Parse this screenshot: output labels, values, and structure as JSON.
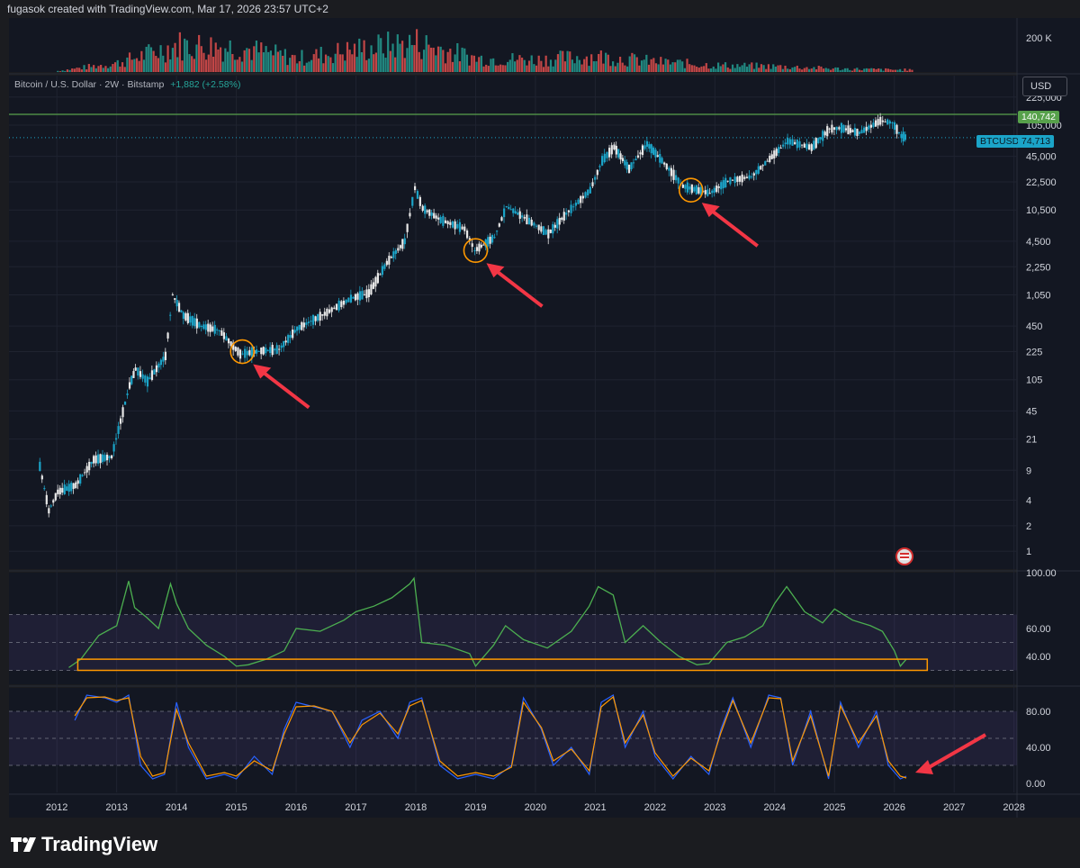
{
  "header": {
    "attribution": "fugasok created with TradingView.com, Mar 17, 2026 23:57 UTC+2"
  },
  "legend": {
    "symbol": "Bitcoin / U.S. Dollar · 2W · Bitstamp",
    "change": "+1,882 (+2.58%)"
  },
  "currency_button": "USD",
  "price_tags": {
    "ath": "140,742",
    "symbol": "BTCUSD",
    "last": "74,713"
  },
  "brand": {
    "name": "TradingView"
  },
  "colors": {
    "up": "#26a69a",
    "cyan": "#1ba4c8",
    "rsi": "#4caf50",
    "stochK": "#2962ff",
    "stochD": "#ff9800",
    "arrow": "#f23645",
    "ath_line": "#57a14b"
  },
  "chart_data": [
    {
      "type": "bar",
      "panel": "volume",
      "ylabel": "",
      "yticks": [
        "200 K"
      ],
      "x": [
        2012,
        2013,
        2014,
        2015,
        2016,
        2017,
        2018,
        2019,
        2020,
        2021,
        2022,
        2023,
        2024,
        2025,
        2026
      ],
      "values": [
        5,
        40,
        120,
        110,
        60,
        100,
        130,
        60,
        55,
        70,
        45,
        30,
        25,
        15,
        10
      ]
    },
    {
      "type": "line",
      "panel": "price",
      "title": "Bitcoin / U.S. Dollar · 2W · Bitstamp",
      "scale": "log",
      "yticks": [
        "225,000",
        "105,000",
        "45,000",
        "22,500",
        "10,500",
        "4,500",
        "2,250",
        "1,050",
        "450",
        "225",
        "105",
        "45",
        "21",
        "9",
        "4",
        "2",
        "1"
      ],
      "xticks": [
        "2012",
        "2013",
        "2014",
        "2015",
        "2016",
        "2017",
        "2018",
        "2019",
        "2020",
        "2021",
        "2022",
        "2023",
        "2024",
        "2025",
        "2026",
        "2027",
        "2028"
      ],
      "series": [
        {
          "x": [
            2011.7,
            2011.85,
            2012.0,
            2012.3,
            2012.6,
            2012.9,
            2013.2,
            2013.3,
            2013.5,
            2013.8,
            2013.92,
            2014.1,
            2014.4,
            2014.7,
            2015.05,
            2015.4,
            2015.7,
            2016.0,
            2016.5,
            2016.9,
            2017.2,
            2017.5,
            2017.8,
            2017.97,
            2018.1,
            2018.4,
            2018.8,
            2018.97,
            2019.3,
            2019.5,
            2019.8,
            2020.2,
            2020.5,
            2020.9,
            2021.1,
            2021.3,
            2021.55,
            2021.85,
            2022.1,
            2022.45,
            2022.9,
            2023.2,
            2023.6,
            2023.9,
            2024.2,
            2024.6,
            2024.9,
            2025.1,
            2025.4,
            2025.75,
            2025.95,
            2026.1,
            2026.2
          ],
          "y": [
            10,
            3,
            5,
            6,
            12,
            13,
            90,
            140,
            100,
            200,
            1050,
            600,
            450,
            400,
            210,
            230,
            240,
            420,
            650,
            950,
            1100,
            2500,
            4500,
            19000,
            11000,
            8000,
            6300,
            3500,
            5000,
            11500,
            8500,
            5500,
            9500,
            18000,
            40000,
            58000,
            32000,
            63000,
            40000,
            20000,
            16500,
            23000,
            26000,
            42000,
            68000,
            57000,
            95000,
            97000,
            85000,
            118000,
            112000,
            78000,
            74713
          ]
        }
      ],
      "horizontal_line": 140742,
      "last_price": 74713,
      "annotations": [
        {
          "type": "circle",
          "x": 2015.1,
          "y": 225
        },
        {
          "type": "circle",
          "x": 2019.0,
          "y": 3500
        },
        {
          "type": "circle",
          "x": 2022.6,
          "y": 18000
        }
      ]
    },
    {
      "type": "line",
      "panel": "rsi",
      "yticks": [
        "100.00",
        "60.00",
        "40.00"
      ],
      "ylim": [
        20,
        100
      ],
      "bands": [
        30,
        70
      ],
      "series": [
        {
          "x": [
            2012.2,
            2012.4,
            2012.7,
            2013.0,
            2013.2,
            2013.3,
            2013.5,
            2013.7,
            2013.9,
            2014.0,
            2014.2,
            2014.5,
            2014.8,
            2015.0,
            2015.2,
            2015.5,
            2015.8,
            2016.0,
            2016.4,
            2016.8,
            2017.0,
            2017.3,
            2017.6,
            2017.9,
            2017.97,
            2018.1,
            2018.5,
            2018.9,
            2019.0,
            2019.3,
            2019.5,
            2019.8,
            2020.2,
            2020.6,
            2020.9,
            2021.05,
            2021.3,
            2021.5,
            2021.8,
            2022.1,
            2022.4,
            2022.7,
            2022.9,
            2023.2,
            2023.5,
            2023.8,
            2024.0,
            2024.2,
            2024.5,
            2024.8,
            2025.0,
            2025.3,
            2025.6,
            2025.8,
            2026.0,
            2026.1,
            2026.2
          ],
          "y": [
            32,
            38,
            55,
            62,
            94,
            75,
            68,
            60,
            92,
            78,
            60,
            48,
            40,
            33,
            34,
            38,
            44,
            60,
            58,
            66,
            72,
            76,
            82,
            92,
            96,
            50,
            48,
            42,
            33,
            48,
            62,
            52,
            46,
            58,
            76,
            90,
            84,
            50,
            62,
            50,
            40,
            34,
            35,
            50,
            54,
            62,
            78,
            90,
            72,
            64,
            74,
            66,
            62,
            58,
            44,
            33,
            38
          ]
        }
      ]
    },
    {
      "type": "line",
      "panel": "stoch_rsi",
      "yticks": [
        "80.00",
        "40.00",
        "0.00"
      ],
      "ylim": [
        0,
        100
      ],
      "bands": [
        20,
        80
      ],
      "series": [
        {
          "x": [
            2012.3,
            2012.5,
            2012.8,
            2013.0,
            2013.2,
            2013.4,
            2013.6,
            2013.8,
            2014.0,
            2014.2,
            2014.5,
            2014.8,
            2015.0,
            2015.3,
            2015.6,
            2015.8,
            2016.0,
            2016.3,
            2016.6,
            2016.9,
            2017.1,
            2017.4,
            2017.7,
            2017.9,
            2018.1,
            2018.4,
            2018.7,
            2019.0,
            2019.3,
            2019.6,
            2019.8,
            2020.1,
            2020.3,
            2020.6,
            2020.9,
            2021.1,
            2021.3,
            2021.5,
            2021.8,
            2022.0,
            2022.3,
            2022.6,
            2022.9,
            2023.1,
            2023.3,
            2023.6,
            2023.9,
            2024.1,
            2024.3,
            2024.6,
            2024.9,
            2025.1,
            2025.4,
            2025.7,
            2025.9,
            2026.1,
            2026.2
          ],
          "y": [
            70,
            98,
            95,
            90,
            98,
            20,
            5,
            10,
            90,
            40,
            5,
            10,
            5,
            30,
            10,
            60,
            90,
            85,
            80,
            40,
            70,
            80,
            50,
            90,
            95,
            20,
            5,
            10,
            5,
            20,
            95,
            60,
            20,
            40,
            10,
            90,
            98,
            40,
            80,
            30,
            5,
            30,
            10,
            60,
            95,
            40,
            98,
            95,
            20,
            80,
            5,
            90,
            40,
            80,
            20,
            5,
            8
          ]
        },
        {
          "x": [
            2012.3,
            2012.5,
            2012.8,
            2013.0,
            2013.2,
            2013.4,
            2013.6,
            2013.8,
            2014.0,
            2014.2,
            2014.5,
            2014.8,
            2015.0,
            2015.3,
            2015.6,
            2015.8,
            2016.0,
            2016.3,
            2016.6,
            2016.9,
            2017.1,
            2017.4,
            2017.7,
            2017.9,
            2018.1,
            2018.4,
            2018.7,
            2019.0,
            2019.3,
            2019.6,
            2019.8,
            2020.1,
            2020.3,
            2020.6,
            2020.9,
            2021.1,
            2021.3,
            2021.5,
            2021.8,
            2022.0,
            2022.3,
            2022.6,
            2022.9,
            2023.1,
            2023.3,
            2023.6,
            2023.9,
            2024.1,
            2024.3,
            2024.6,
            2024.9,
            2025.1,
            2025.4,
            2025.7,
            2025.9,
            2026.1,
            2026.2
          ],
          "y": [
            75,
            95,
            96,
            92,
            95,
            30,
            8,
            12,
            82,
            45,
            8,
            12,
            8,
            25,
            14,
            55,
            85,
            86,
            80,
            45,
            65,
            78,
            55,
            86,
            92,
            25,
            8,
            12,
            8,
            18,
            90,
            62,
            25,
            38,
            14,
            85,
            96,
            45,
            76,
            34,
            8,
            28,
            14,
            56,
            92,
            45,
            95,
            94,
            25,
            75,
            8,
            86,
            45,
            75,
            25,
            8,
            6
          ]
        }
      ]
    }
  ]
}
